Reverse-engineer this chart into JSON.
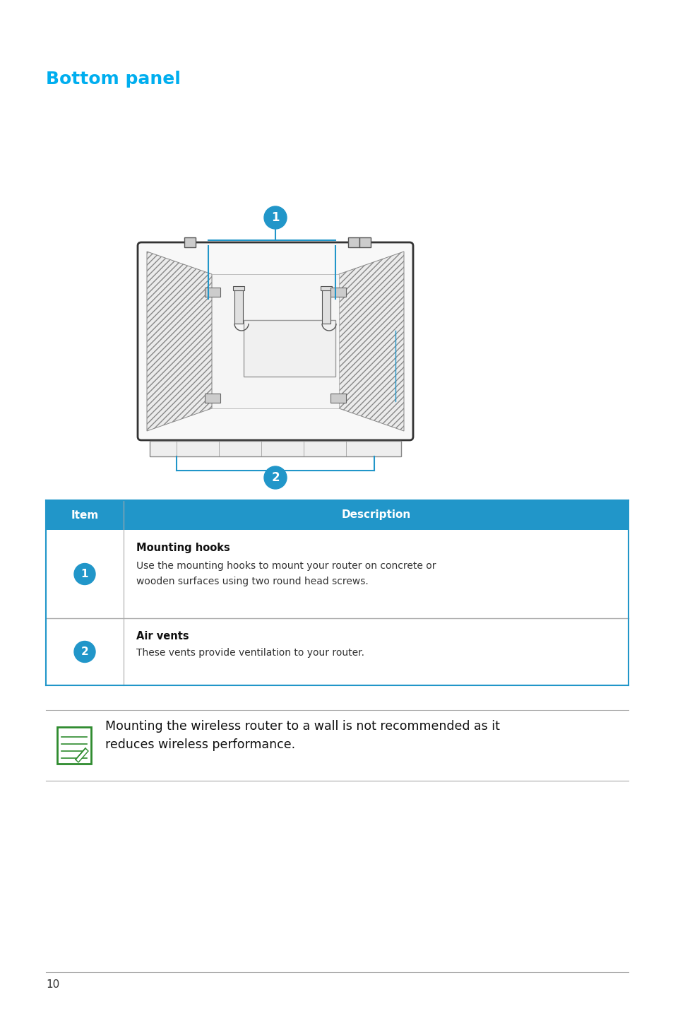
{
  "title": "Bottom panel",
  "title_color": "#00AEEF",
  "title_fontsize": 18,
  "bg_color": "#FFFFFF",
  "table_header_bg": "#2196C9",
  "table_header_color": "#FFFFFF",
  "table_border_color": "#2196C9",
  "table_row_border": "#AAAAAA",
  "row1_title": "Mounting hooks",
  "row1_desc1": "Use the mounting hooks to mount your router on concrete or",
  "row1_desc2": "wooden surfaces using two round head screws.",
  "row2_title": "Air vents",
  "row2_desc": "These vents provide ventilation to your router.",
  "note_text1": "Mounting the wireless router to a wall is not recommended as it",
  "note_text2": "reduces wireless performance.",
  "page_number": "10",
  "callout_color": "#2196C9",
  "line_color": "#555555"
}
